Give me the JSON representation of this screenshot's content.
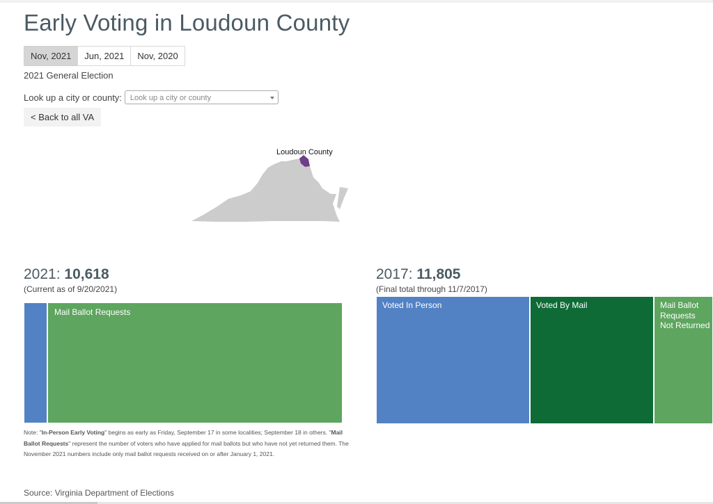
{
  "page": {
    "title": "Early Voting in Loudoun County"
  },
  "tabs": [
    {
      "label": "Nov, 2021",
      "active": true
    },
    {
      "label": "Jun, 2021",
      "active": false
    },
    {
      "label": "Nov, 2020",
      "active": false
    }
  ],
  "election_name": "2021 General Election",
  "lookup": {
    "label": "Look up a city or county:",
    "placeholder": "Look up a city or county"
  },
  "back_button": "< Back to all VA",
  "map": {
    "county_label": "Loudoun County",
    "state_color": "#cccccc",
    "county_color": "#6d3e8a"
  },
  "colors": {
    "in_person": "#5282c4",
    "by_mail": "#0e6b36",
    "requests": "#5ea55f"
  },
  "current": {
    "year": "2021:",
    "total": "10,618",
    "as_of": "(Current as of 9/20/2021)",
    "segments": [
      {
        "name": "In-Person Early Voting",
        "label": "",
        "color": "#5282c4"
      },
      {
        "name": "Mail Ballot Requests",
        "label": "Mail Ballot Requests",
        "color": "#5ea55f"
      }
    ]
  },
  "previous": {
    "year": "2017:",
    "total": "11,805",
    "as_of": "(Final total through 11/7/2017)",
    "segments": [
      {
        "name": "Voted In Person",
        "label": "Voted In Person",
        "color": "#5282c4"
      },
      {
        "name": "Voted By Mail",
        "label": "Voted By Mail",
        "color": "#0e6b36"
      },
      {
        "name": "Mail Ballot Requests Not Returned",
        "label": "Mail Ballot Requests Not Returned",
        "color": "#5ea55f"
      }
    ]
  },
  "note": {
    "prefix": "Note: \"",
    "in_person_term": "In-Person Early Voting",
    "mid1": "\" begins as early as Friday, September 17 in some localities; September 18 in others. \"",
    "requests_term": "Mail Ballot Requests",
    "rest": "\" represent the number of voters who have applied for mail ballots but who have not yet returned them. The November 2021 numbers include only mail ballot requests received on or after January 1, 2021."
  },
  "source": "Source: Virginia Department of Elections"
}
